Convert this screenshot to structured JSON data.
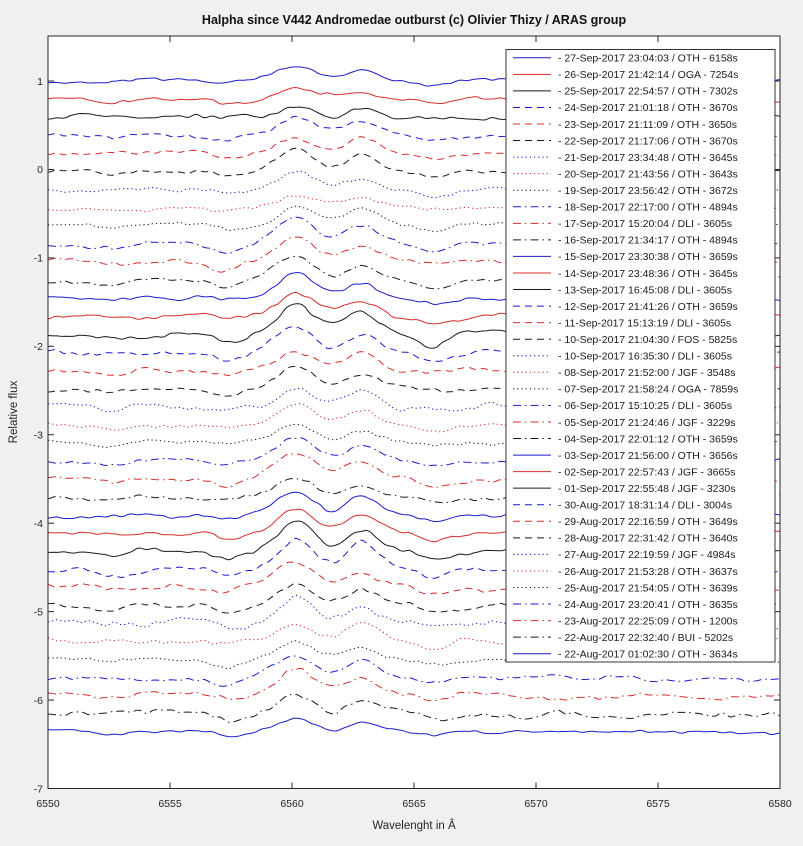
{
  "figure": {
    "title": "Halpha since V442 Andromedae outburst (c) Olivier Thizy / ARAS group",
    "background_color": "#f0f0f0",
    "plot_background_color": "#ffffff",
    "axis_color": "#262626"
  },
  "palette": {
    "blue": "#1a1acd",
    "red": "#d92b2b",
    "black": "#1a1a1a"
  },
  "chart_data": {
    "type": "line",
    "title": "Halpha since V442 Andromedae outburst (c) Olivier Thizy / ARAS group",
    "xlabel": "Wavelenght in Â",
    "ylabel": "Relative flux",
    "xlim": [
      6550,
      6580
    ],
    "ylim": [
      -7,
      1.509
    ],
    "xticks": [
      6550,
      6555,
      6560,
      6565,
      6570,
      6575,
      6580
    ],
    "yticks": [
      1,
      0,
      -1,
      -2,
      -3,
      -4,
      -5,
      -6,
      -7
    ],
    "grid": false,
    "legend_position": "upper-right",
    "description": "37 H-alpha spectra of V442 And, vertically offset by ~0.205 in relative flux, newest at top. Each spectrum is a noisy continuum with a double-peaked H-alpha emission bump near 6560-6563 A and shallow absorption dips near 6552.7, 6557.4, 6565.9 and 6574.9 A.",
    "emission_feature": {
      "main_peak_angstrom": 6560.15,
      "secondary_peak_angstrom": 6562.85,
      "typical_amplitude": 0.25
    },
    "series": [
      {
        "label": "- 27-Sep-2017 23:04:03 / OTH - 6158s",
        "color": "#1a1acd",
        "linestyle": "solid",
        "offset": 1.0,
        "peak": 0.15,
        "noise": 0.025
      },
      {
        "label": "- 26-Sep-2017 21:42:14 / OGA - 7254s",
        "color": "#d92b2b",
        "linestyle": "solid",
        "offset": 0.796,
        "peak": 0.13,
        "noise": 0.03
      },
      {
        "label": "- 25-Sep-2017 22:54:57 / OTH - 7302s",
        "color": "#1a1a1a",
        "linestyle": "solid",
        "offset": 0.591,
        "peak": 0.12,
        "noise": 0.035
      },
      {
        "label": "- 24-Sep-2017 21:01:18 / OTH - 3670s",
        "color": "#1a1acd",
        "linestyle": "dashed",
        "offset": 0.387,
        "peak": 0.22,
        "noise": 0.03
      },
      {
        "label": "- 23-Sep-2017 21:11:09 / OTH - 3650s",
        "color": "#d92b2b",
        "linestyle": "dashed",
        "offset": 0.182,
        "peak": 0.2,
        "noise": 0.03
      },
      {
        "label": "- 22-Sep-2017 21:17:06 / OTH - 3670s",
        "color": "#1a1a1a",
        "linestyle": "dashed",
        "offset": -0.023,
        "peak": 0.25,
        "noise": 0.03
      },
      {
        "label": "- 21-Sep-2017 23:34:48 / OTH - 3645s",
        "color": "#1a1acd",
        "linestyle": "dotted",
        "offset": -0.227,
        "peak": 0.18,
        "noise": 0.03
      },
      {
        "label": "- 20-Sep-2017 21:43:56 / OTH - 3643s",
        "color": "#d92b2b",
        "linestyle": "dotted",
        "offset": -0.432,
        "peak": 0.15,
        "noise": 0.03
      },
      {
        "label": "- 19-Sep-2017 23:56:42 / OTH - 3672s",
        "color": "#1a1a1a",
        "linestyle": "dotted",
        "offset": -0.636,
        "peak": 0.2,
        "noise": 0.03
      },
      {
        "label": "- 18-Sep-2017 22:17:00 / OTH - 4894s",
        "color": "#1a1acd",
        "linestyle": "dashdot",
        "offset": -0.841,
        "peak": 0.28,
        "noise": 0.035
      },
      {
        "label": "- 17-Sep-2017 15:20:04 / DLI - 3605s",
        "color": "#d92b2b",
        "linestyle": "dashdot",
        "offset": -1.045,
        "peak": 0.3,
        "noise": 0.035
      },
      {
        "label": "- 16-Sep-2017 21:34:17 / OTH - 4894s",
        "color": "#1a1a1a",
        "linestyle": "dashdot",
        "offset": -1.25,
        "peak": 0.26,
        "noise": 0.03
      },
      {
        "label": "- 15-Sep-2017 23:30:38 / OTH - 3659s",
        "color": "#1a1acd",
        "linestyle": "solid",
        "offset": -1.454,
        "peak": 0.28,
        "noise": 0.03
      },
      {
        "label": "- 14-Sep-2017 23:48:36 / OTH - 3645s",
        "color": "#d92b2b",
        "linestyle": "solid",
        "offset": -1.659,
        "peak": 0.25,
        "noise": 0.03
      },
      {
        "label": "- 13-Sep-2017 16:45:08 / DLI - 3605s",
        "color": "#1a1a1a",
        "linestyle": "solid",
        "offset": -1.863,
        "peak": 0.33,
        "noise": 0.04
      },
      {
        "label": "- 12-Sep-2017 21:41:26 / OTH - 3659s",
        "color": "#1a1acd",
        "linestyle": "dashed",
        "offset": -2.068,
        "peak": 0.3,
        "noise": 0.03
      },
      {
        "label": "- 11-Sep-2017 15:13:19 / DLI - 3605s",
        "color": "#d92b2b",
        "linestyle": "dashed",
        "offset": -2.272,
        "peak": 0.22,
        "noise": 0.035
      },
      {
        "label": "- 10-Sep-2017 21:04:30 / FOS - 5825s",
        "color": "#1a1a1a",
        "linestyle": "dashed",
        "offset": -2.477,
        "peak": 0.28,
        "noise": 0.03
      },
      {
        "label": "- 10-Sep-2017 16:35:30 / DLI - 3605s",
        "color": "#1a1acd",
        "linestyle": "dotted",
        "offset": -2.681,
        "peak": 0.2,
        "noise": 0.045
      },
      {
        "label": "- 08-Sep-2017 21:52:00 / JGF - 3548s",
        "color": "#d92b2b",
        "linestyle": "dotted",
        "offset": -2.886,
        "peak": 0.22,
        "noise": 0.03
      },
      {
        "label": "- 07-Sep-2017 21:58:24 / OGA - 7859s",
        "color": "#1a1a1a",
        "linestyle": "dotted",
        "offset": -3.09,
        "peak": 0.18,
        "noise": 0.025
      },
      {
        "label": "- 06-Sep-2017 15:10:25 / DLI - 3605s",
        "color": "#1a1acd",
        "linestyle": "dashdot",
        "offset": -3.295,
        "peak": 0.26,
        "noise": 0.035
      },
      {
        "label": "- 05-Sep-2017 21:24:46 / JGF - 3229s",
        "color": "#d92b2b",
        "linestyle": "dashdot",
        "offset": -3.499,
        "peak": 0.28,
        "noise": 0.035
      },
      {
        "label": "- 04-Sep-2017 22:01:12 / OTH - 3659s",
        "color": "#1a1a1a",
        "linestyle": "dashdot",
        "offset": -3.704,
        "peak": 0.24,
        "noise": 0.03
      },
      {
        "label": "- 03-Sep-2017 21:56:00 / OTH - 3656s",
        "color": "#1a1acd",
        "linestyle": "solid",
        "offset": -3.908,
        "peak": 0.26,
        "noise": 0.03
      },
      {
        "label": "- 02-Sep-2017 22:57:43 / JGF - 3665s",
        "color": "#d92b2b",
        "linestyle": "solid",
        "offset": -4.113,
        "peak": 0.28,
        "noise": 0.03
      },
      {
        "label": "- 01-Sep-2017 22:55:48 / JGF - 3230s",
        "color": "#1a1a1a",
        "linestyle": "solid",
        "offset": -4.317,
        "peak": 0.33,
        "noise": 0.035
      },
      {
        "label": "- 30-Aug-2017 18:31:14 / DLI - 3004s",
        "color": "#1a1acd",
        "linestyle": "dashed",
        "offset": -4.522,
        "peak": 0.34,
        "noise": 0.04
      },
      {
        "label": "- 29-Aug-2017 22:16:59 / OTH - 3649s",
        "color": "#d92b2b",
        "linestyle": "dashed",
        "offset": -4.726,
        "peak": 0.28,
        "noise": 0.04
      },
      {
        "label": "- 28-Aug-2017 22:31:42 / OTH - 3640s",
        "color": "#1a1a1a",
        "linestyle": "dashed",
        "offset": -4.931,
        "peak": 0.26,
        "noise": 0.035
      },
      {
        "label": "- 27-Aug-2017 22:19:59 / JGF - 4984s",
        "color": "#1a1acd",
        "linestyle": "dotted",
        "offset": -5.135,
        "peak": 0.26,
        "noise": 0.05
      },
      {
        "label": "- 26-Aug-2017 21:53:28 / OTH - 3637s",
        "color": "#d92b2b",
        "linestyle": "dotted",
        "offset": -5.34,
        "peak": 0.22,
        "noise": 0.035
      },
      {
        "label": "- 25-Aug-2017 21:54:05 / OTH - 3639s",
        "color": "#1a1a1a",
        "linestyle": "dotted",
        "offset": -5.544,
        "peak": 0.2,
        "noise": 0.03
      },
      {
        "label": "- 24-Aug-2017 23:20:41 / OTH - 3635s",
        "color": "#1a1acd",
        "linestyle": "dashdot",
        "offset": -5.749,
        "peak": 0.26,
        "noise": 0.035
      },
      {
        "label": "- 23-Aug-2017 22:25:09 / OTH - 1200s",
        "color": "#d92b2b",
        "linestyle": "dashdot",
        "offset": -5.953,
        "peak": 0.28,
        "noise": 0.04
      },
      {
        "label": "- 22-Aug-2017 22:32:40 / BUI - 5202s",
        "color": "#1a1a1a",
        "linestyle": "dashdot",
        "offset": -6.158,
        "peak": 0.24,
        "noise": 0.045
      },
      {
        "label": "- 22-Aug-2017 01:02:30 / OTH - 3634s",
        "color": "#1a1acd",
        "linestyle": "solid",
        "offset": -6.362,
        "peak": 0.14,
        "noise": 0.025
      }
    ]
  }
}
